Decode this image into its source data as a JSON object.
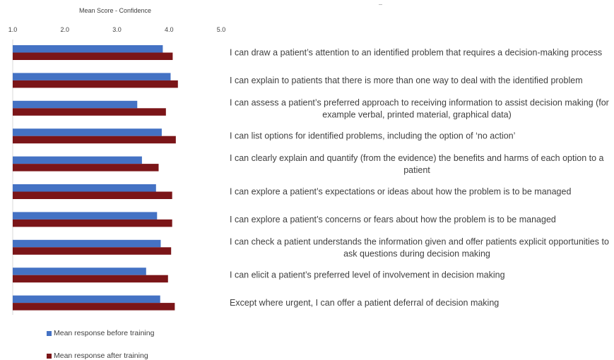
{
  "colors": {
    "before": "#4472c4",
    "after": "#7b1518",
    "axis": "#d9d9d9"
  },
  "chart_data": {
    "type": "bar",
    "orientation": "horizontal",
    "title": "Mean Score - Confidence",
    "xlim": [
      1.0,
      5.0
    ],
    "ticks": [
      "1.0",
      "2.0",
      "3.0",
      "4.0",
      "5.0"
    ],
    "categories": [
      [
        "I can draw a patient’s attention to an identified problem that requires a decision-making process"
      ],
      [
        "I can explain to patients that there is more than one way to deal with the identified problem"
      ],
      [
        "I can assess a patient’s preferred approach to receiving information to assist decision making (for",
        "example verbal, printed material, graphical data)"
      ],
      [
        "I can list options for identified problems, including the option of ‘no action’"
      ],
      [
        "I can clearly explain and quantify (from the evidence) the benefits and harms of each option to a",
        "patient"
      ],
      [
        "I can explore a patient’s expectations or ideas about how the problem is to be managed"
      ],
      [
        "I can explore a patient’s concerns or fears about how the problem is to be managed"
      ],
      [
        "I can check a patient understands the information given and offer patients explicit opportunities to",
        "ask questions during decision making"
      ],
      [
        "I can elicit a patient’s preferred level of involvement in decision making"
      ],
      [
        "Except where urgent, I can offer a patient deferral of decision making"
      ]
    ],
    "series": [
      {
        "name": "Mean response before training",
        "values": [
          3.88,
          4.03,
          3.39,
          3.86,
          3.48,
          3.75,
          3.77,
          3.84,
          3.56,
          3.83
        ]
      },
      {
        "name": "Mean response after training",
        "values": [
          4.07,
          4.17,
          3.94,
          4.13,
          3.8,
          4.06,
          4.06,
          4.04,
          3.98,
          4.11
        ]
      }
    ],
    "legend_position": "bottom-left",
    "grid": false
  }
}
